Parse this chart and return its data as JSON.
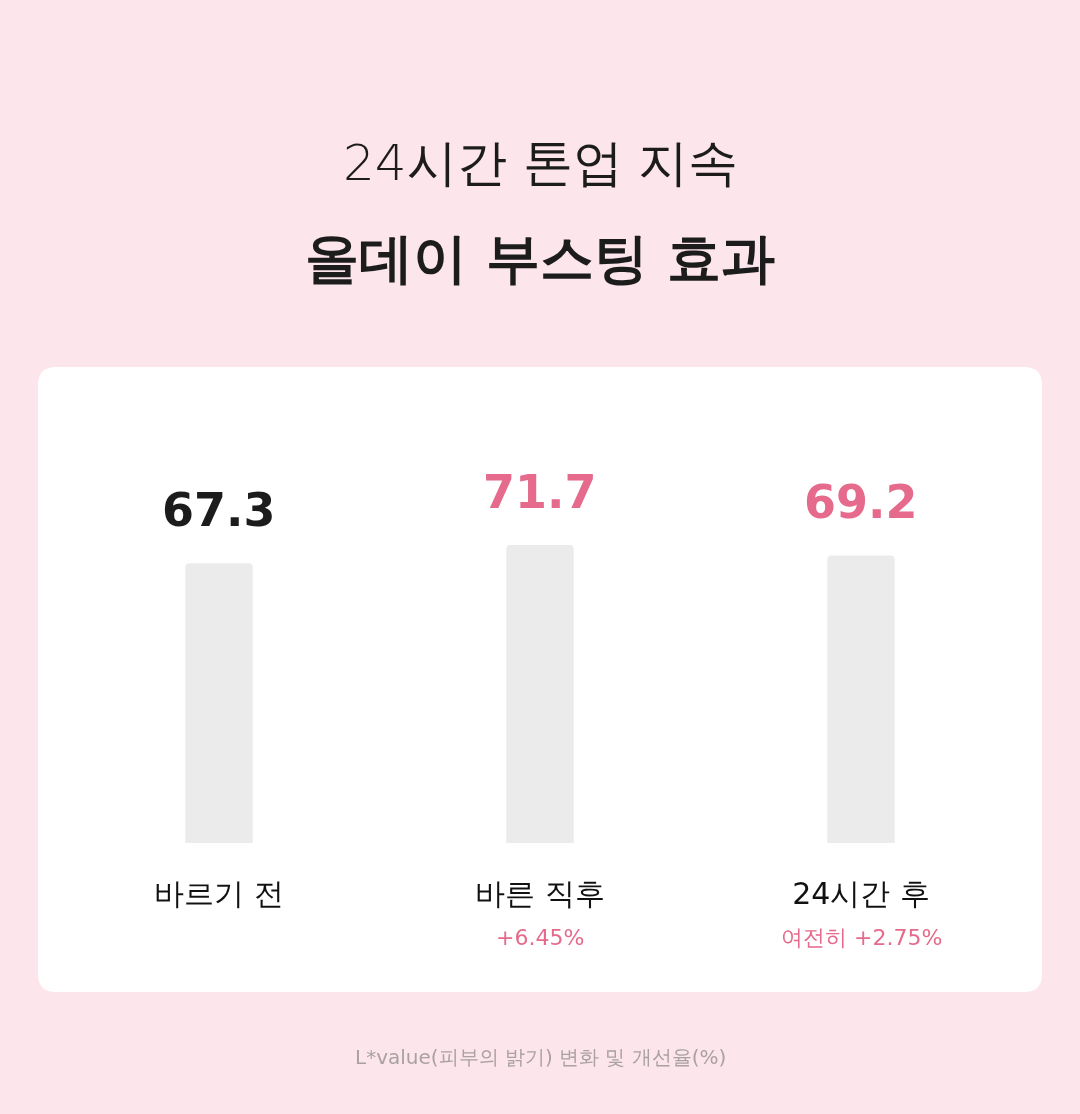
{
  "chart_data": {
    "type": "bar",
    "title": "24시간 톤업 지속",
    "subtitle": "올데이 부스팅 효과",
    "categories": [
      "바르기 전",
      "바른 직후",
      "24시간 후"
    ],
    "values": [
      67.3,
      71.7,
      69.2
    ],
    "colors": [
      "#ebebeb",
      "#ebebeb",
      "#ebebeb"
    ],
    "data_labels": true,
    "tick_labels": "x",
    "annotations": [
      "+6.45%",
      "여전히 +2.75%",
      "L*value(피부의 밝기) 변화 및 개선율(%)"
    ]
  }
}
